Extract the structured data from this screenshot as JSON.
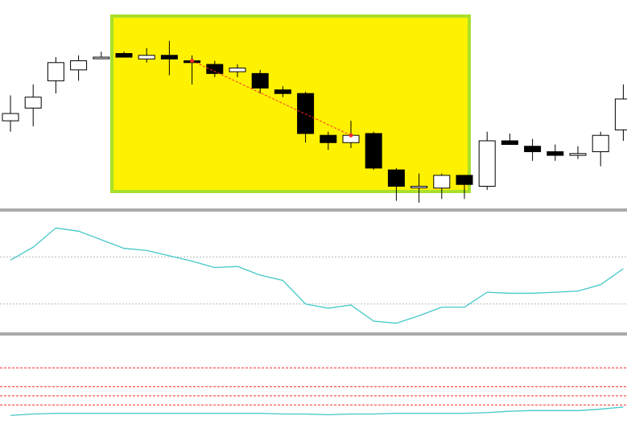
{
  "colors": {
    "background": "#ffffff",
    "candle_outline": "#000000",
    "bear_fill": "#000000",
    "bull_fill": "#ffffff",
    "highlight_fill": "#fff200",
    "highlight_border": "#a8e02a",
    "indicator_line": "#44c8c8",
    "panel_separator": "#555555",
    "level_gray": "#b8b8b8",
    "level_red": "#ff2a2a",
    "trendline": "#ff2a2a"
  },
  "chart_data": [
    {
      "type": "candlestick",
      "panel": "price",
      "highlighted_range": [
        5,
        20
      ],
      "trendline": {
        "from_index": 8,
        "to_index": 15,
        "color": "red",
        "style": "dashed"
      },
      "ylim": [
        0,
        100
      ],
      "candles": [
        {
          "open": 38,
          "high": 52,
          "low": 32,
          "close": 42
        },
        {
          "open": 45,
          "high": 58,
          "low": 35,
          "close": 51
        },
        {
          "open": 60,
          "high": 73,
          "low": 53,
          "close": 70
        },
        {
          "open": 66,
          "high": 74,
          "low": 60,
          "close": 71
        },
        {
          "open": 73,
          "high": 76,
          "low": 72,
          "close": 73
        },
        {
          "open": 75,
          "high": 76,
          "low": 74,
          "close": 73
        },
        {
          "open": 72,
          "high": 78,
          "low": 70,
          "close": 74
        },
        {
          "open": 74,
          "high": 82,
          "low": 63,
          "close": 72
        },
        {
          "open": 71,
          "high": 74,
          "low": 58,
          "close": 70
        },
        {
          "open": 69,
          "high": 71,
          "low": 62,
          "close": 64
        },
        {
          "open": 65,
          "high": 69,
          "low": 62,
          "close": 67
        },
        {
          "open": 64,
          "high": 66,
          "low": 53,
          "close": 56
        },
        {
          "open": 55,
          "high": 57,
          "low": 51,
          "close": 53
        },
        {
          "open": 53,
          "high": 54,
          "low": 26,
          "close": 31
        },
        {
          "open": 30,
          "high": 32,
          "low": 22,
          "close": 26
        },
        {
          "open": 26,
          "high": 38,
          "low": 23,
          "close": 30
        },
        {
          "open": 31,
          "high": 32,
          "low": 11,
          "close": 12
        },
        {
          "open": 11,
          "high": 12,
          "low": -6,
          "close": 2
        },
        {
          "open": 2,
          "high": 9,
          "low": -7,
          "close": 2
        },
        {
          "open": 1,
          "high": 9,
          "low": -5,
          "close": 8
        },
        {
          "open": 8,
          "high": 8,
          "low": -5,
          "close": 3
        },
        {
          "open": 2,
          "high": 32,
          "low": 0,
          "close": 27
        },
        {
          "open": 27,
          "high": 31,
          "low": 25,
          "close": 25
        },
        {
          "open": 24,
          "high": 28,
          "low": 16,
          "close": 21
        },
        {
          "open": 21,
          "high": 25,
          "low": 16,
          "close": 19
        },
        {
          "open": 19,
          "high": 24,
          "low": 17,
          "close": 20
        },
        {
          "open": 21,
          "high": 32,
          "low": 13,
          "close": 30
        },
        {
          "open": 33,
          "high": 58,
          "low": 27,
          "close": 50
        }
      ]
    },
    {
      "type": "line",
      "panel": "oscillator-1",
      "ylim": [
        0,
        100
      ],
      "levels": [
        66,
        22
      ],
      "values": [
        63,
        75,
        93,
        90,
        82,
        74,
        72,
        67,
        62,
        56,
        57,
        49,
        44,
        22,
        18,
        21,
        6,
        4,
        11,
        19,
        19,
        33,
        32,
        32,
        33,
        34,
        40,
        55
      ]
    },
    {
      "type": "line",
      "panel": "oscillator-2",
      "ylim": [
        0,
        100
      ],
      "levels": [
        70,
        43,
        30,
        17
      ],
      "values": [
        2,
        4,
        5,
        5,
        5,
        5,
        5,
        5,
        5,
        5,
        5,
        5,
        4,
        4,
        3,
        4,
        4,
        5,
        5,
        5,
        5,
        6,
        8,
        9,
        9,
        9,
        11,
        14
      ]
    }
  ]
}
